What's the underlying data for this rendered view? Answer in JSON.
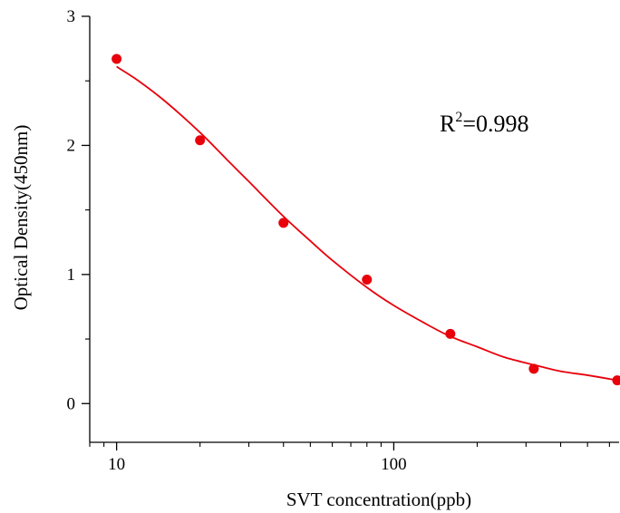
{
  "chart_data": {
    "type": "scatter",
    "title": "",
    "xlabel": "SVT concentration(ppb)",
    "ylabel": "Optical Density(450nm)",
    "x_scale": "log",
    "xlim": [
      8.0,
      650
    ],
    "ylim": [
      -0.3,
      3.0
    ],
    "x_tick_values": [
      10,
      100
    ],
    "x_tick_labels": [
      "10",
      "100"
    ],
    "y_tick_values": [
      0,
      1,
      2,
      3
    ],
    "y_tick_labels": [
      "0",
      "1",
      "2",
      "3"
    ],
    "grid": false,
    "legend": "none",
    "marker_color": "#e8000b",
    "line_color": "#e8000b",
    "series": [
      {
        "type": "scatter",
        "x": [
          10,
          20,
          40,
          80,
          160,
          320,
          640
        ],
        "y": [
          2.67,
          2.04,
          1.4,
          0.96,
          0.54,
          0.27,
          0.18
        ]
      },
      {
        "type": "line",
        "fit": "four-parameter logistic",
        "x": [
          10,
          12,
          15,
          20,
          25,
          30,
          40,
          50,
          60,
          80,
          100,
          130,
          160,
          200,
          250,
          320,
          400,
          500,
          640
        ],
        "y": [
          2.61,
          2.5,
          2.34,
          2.1,
          1.89,
          1.72,
          1.45,
          1.26,
          1.11,
          0.9,
          0.76,
          0.62,
          0.52,
          0.44,
          0.36,
          0.3,
          0.25,
          0.22,
          0.18
        ]
      }
    ],
    "annotation": {
      "base": "R",
      "sup": "2",
      "rest": "=0.998"
    }
  }
}
